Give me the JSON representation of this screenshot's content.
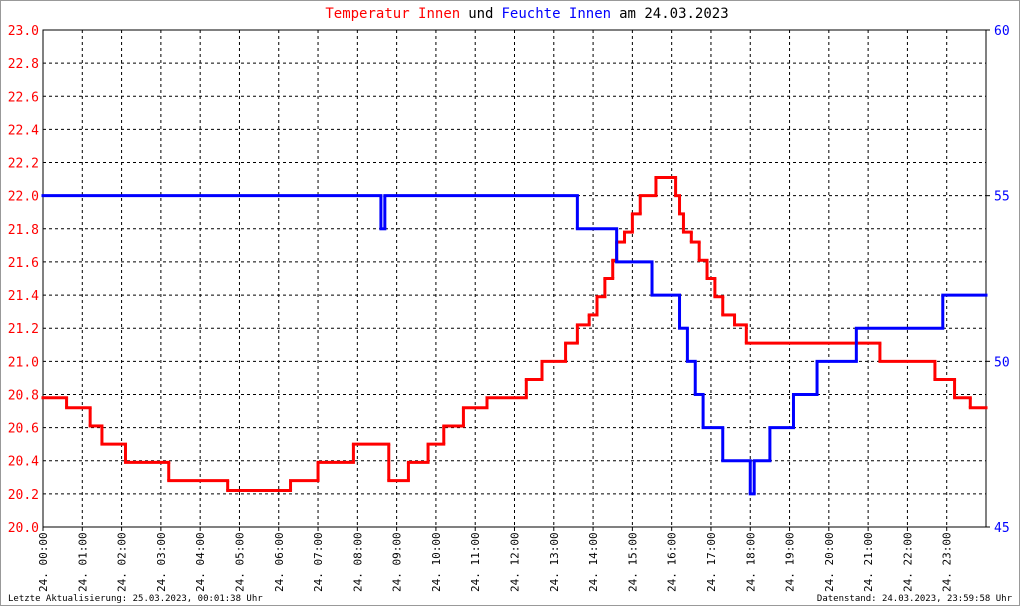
{
  "chart_data": {
    "type": "line",
    "title_parts": [
      {
        "text": "Temperatur Innen",
        "color": "#ff0000"
      },
      {
        "text": "und",
        "color": "#000000"
      },
      {
        "text": "Feuchte Innen",
        "color": "#0000ff"
      },
      {
        "text": "am 24.03.2023",
        "color": "#000000"
      }
    ],
    "footer_left": "Letzte Aktualisierung: 25.03.2023, 00:01:38 Uhr",
    "footer_right": "Datenstand: 24.03.2023, 23:59:58 Uhr",
    "step": "post",
    "grid": true,
    "xlim": [
      0,
      24
    ],
    "xticks": [
      {
        "value": 0,
        "label": "24. 00:00"
      },
      {
        "value": 1,
        "label": "24. 01:00"
      },
      {
        "value": 2,
        "label": "24. 02:00"
      },
      {
        "value": 3,
        "label": "24. 03:00"
      },
      {
        "value": 4,
        "label": "24. 04:00"
      },
      {
        "value": 5,
        "label": "24. 05:00"
      },
      {
        "value": 6,
        "label": "24. 06:00"
      },
      {
        "value": 7,
        "label": "24. 07:00"
      },
      {
        "value": 8,
        "label": "24. 08:00"
      },
      {
        "value": 9,
        "label": "24. 09:00"
      },
      {
        "value": 10,
        "label": "24. 10:00"
      },
      {
        "value": 11,
        "label": "24. 11:00"
      },
      {
        "value": 12,
        "label": "24. 12:00"
      },
      {
        "value": 13,
        "label": "24. 13:00"
      },
      {
        "value": 14,
        "label": "24. 14:00"
      },
      {
        "value": 15,
        "label": "24. 15:00"
      },
      {
        "value": 16,
        "label": "24. 16:00"
      },
      {
        "value": 17,
        "label": "24. 17:00"
      },
      {
        "value": 18,
        "label": "24. 18:00"
      },
      {
        "value": 19,
        "label": "24. 19:00"
      },
      {
        "value": 20,
        "label": "24. 20:00"
      },
      {
        "value": 21,
        "label": "24. 21:00"
      },
      {
        "value": 22,
        "label": "24. 22:00"
      },
      {
        "value": 23,
        "label": "24. 23:00"
      }
    ],
    "ylim": [
      20,
      23
    ],
    "yticks": [
      {
        "value": 20,
        "label": "20.0"
      },
      20.2,
      20.4,
      20.6,
      20.8,
      {
        "value": 21,
        "label": "21.0"
      },
      21.2,
      21.4,
      21.6,
      21.8,
      {
        "value": 22,
        "label": "22.0"
      },
      22.2,
      22.4,
      22.6,
      22.8,
      {
        "value": 23,
        "label": "23.0"
      }
    ],
    "y2lim": [
      45,
      60
    ],
    "y2ticks": [
      45,
      50,
      55,
      60
    ],
    "series": [
      {
        "name": "Temperatur Innen",
        "color": "#ff0000",
        "axis": "y",
        "x": [
          0,
          0.6,
          1.2,
          1.5,
          2.1,
          3.2,
          4.7,
          6.3,
          7.0,
          7.9,
          8.8,
          9.3,
          9.8,
          10.2,
          10.7,
          11.3,
          12.3,
          12.7,
          13.3,
          13.6,
          13.9,
          14.1,
          14.3,
          14.5,
          14.6,
          14.8,
          15.0,
          15.2,
          15.6,
          16.1,
          16.2,
          16.3,
          16.5,
          16.7,
          16.9,
          17.1,
          17.3,
          17.6,
          17.9,
          21.3,
          22.7,
          23.2,
          23.6
        ],
        "values": [
          20.78,
          20.72,
          20.61,
          20.5,
          20.39,
          20.28,
          20.22,
          20.28,
          20.39,
          20.5,
          20.28,
          20.39,
          20.5,
          20.61,
          20.72,
          20.78,
          20.89,
          21.0,
          21.11,
          21.22,
          21.28,
          21.39,
          21.5,
          21.61,
          21.72,
          21.78,
          21.89,
          22.0,
          22.11,
          22.0,
          21.89,
          21.78,
          21.72,
          21.61,
          21.5,
          21.39,
          21.28,
          21.22,
          21.11,
          21.0,
          20.89,
          20.78,
          20.72
        ]
      },
      {
        "name": "Feuchte Innen",
        "color": "#0000ff",
        "axis": "y2",
        "x": [
          0,
          8.6,
          8.7,
          13.6,
          14.6,
          15.5,
          16.2,
          16.4,
          16.6,
          16.8,
          17.3,
          18.0,
          18.1,
          18.5,
          19.1,
          19.7,
          20.7,
          22.9
        ],
        "values": [
          55,
          54,
          55,
          54,
          53,
          52,
          51,
          50,
          49,
          48,
          47,
          46,
          47,
          48,
          49,
          50,
          51,
          52
        ]
      }
    ]
  }
}
